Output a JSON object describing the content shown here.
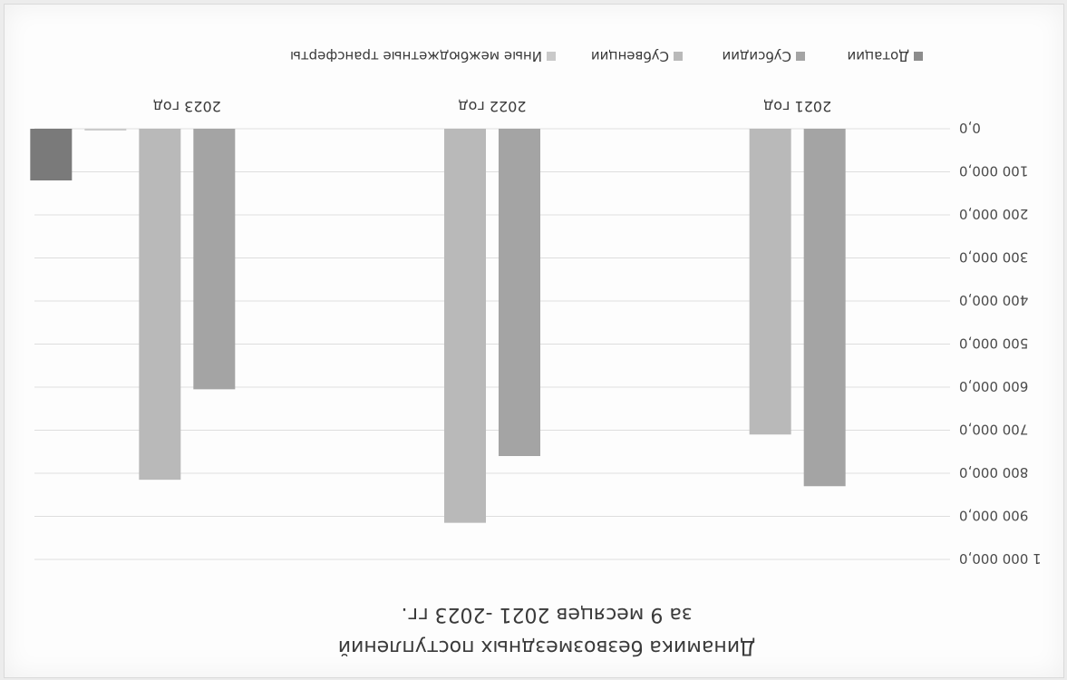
{
  "chart_data": {
    "type": "bar",
    "orientation": "rotated-180",
    "title": "Динамика безвозмездных поступлений",
    "subtitle": "за 9 месяцев 2021 -2023 гг.",
    "categories": [
      "2021 год",
      "2022 год",
      "2023 год"
    ],
    "series": [
      {
        "name": "Дотации",
        "color": "#8c8c8c",
        "values": [
          0,
          0,
          0
        ]
      },
      {
        "name": "Субсидии",
        "color": "#a4a4a4",
        "values": [
          830000,
          760000,
          605000
        ]
      },
      {
        "name": "Субвенции",
        "color": "#b9b9b9",
        "values": [
          710000,
          915000,
          815000
        ]
      },
      {
        "name": "Иные межбюджетные трансферты",
        "color": "#c9c9c9",
        "values": [
          0,
          0,
          4000
        ]
      }
    ],
    "extra_bar": {
      "category": "2023 год",
      "value": 120000,
      "color": "#7a7a7a"
    },
    "ylim": [
      0,
      1000000
    ],
    "yticks": [
      "0,0",
      "100 000,0",
      "200 000,0",
      "300 000,0",
      "400 000,0",
      "500 000,0",
      "600 000,0",
      "700 000,0",
      "800 000,0",
      "900 000,0",
      "1 000 000,0"
    ],
    "grid": true,
    "legend_position": "bottom"
  }
}
